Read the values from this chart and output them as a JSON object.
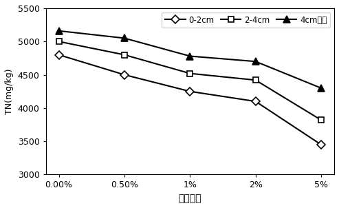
{
  "x_labels": [
    "0.00%",
    "0.50%",
    "1%",
    "2%",
    "5%"
  ],
  "series": [
    {
      "label": "0-2cm",
      "values": [
        4800,
        4500,
        4250,
        4100,
        3450
      ],
      "color": "#000000",
      "marker": "D",
      "markersize": 6,
      "linestyle": "-"
    },
    {
      "label": "2-4cm",
      "values": [
        5000,
        4800,
        4520,
        4420,
        3820
      ],
      "color": "#000000",
      "marker": "s",
      "markersize": 6,
      "linestyle": "-"
    },
    {
      "label": "4cm以下",
      "values": [
        5160,
        5050,
        4780,
        4700,
        4300
      ],
      "color": "#000000",
      "marker": "^",
      "markersize": 7,
      "linestyle": "-"
    }
  ],
  "ylabel": "TN(mg/kg)",
  "xlabel": "接种比例",
  "ylim": [
    3000,
    5500
  ],
  "yticks": [
    3000,
    3500,
    4000,
    4500,
    5000,
    5500
  ],
  "legend_labels": [
    "0-2cm",
    "2-4cm",
    "4cm以下"
  ],
  "linewidth": 1.5,
  "background_color": "#ffffff",
  "markerfacecolor": "white"
}
